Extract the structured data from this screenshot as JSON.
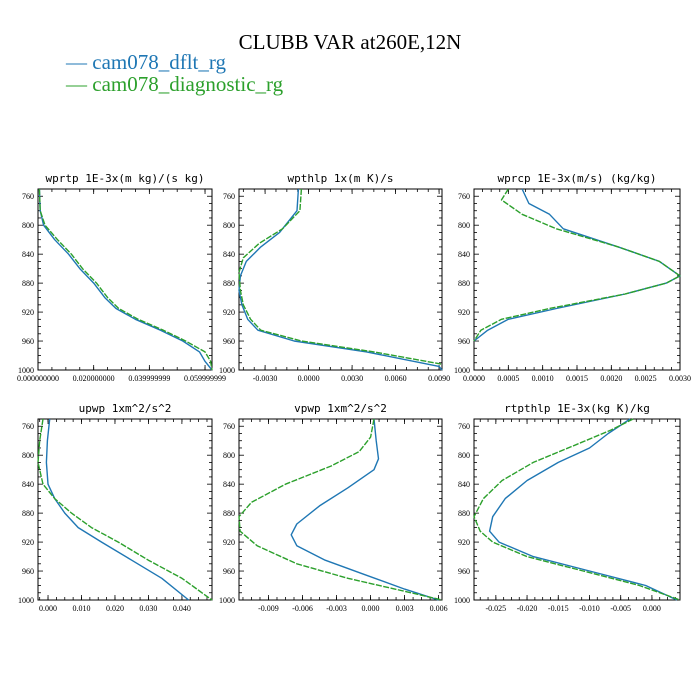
{
  "figure": {
    "title": "CLUBB VAR at260E,12N"
  },
  "legend": [
    {
      "label": "cam078_dflt_rg",
      "color": "#1f77b4"
    },
    {
      "label": "cam078_diagnostic_rg",
      "color": "#2ca02c"
    }
  ],
  "chart_data": [
    {
      "type": "line",
      "title": "wprtp  1E-3x(m kg)/(s kg)",
      "xlim": [
        0,
        0.0625
      ],
      "ylim": [
        750,
        1000
      ],
      "x_ticks": [
        0,
        0.02,
        0.04,
        0.06
      ],
      "x_tick_labels": [
        "0.000000000",
        "0.020000000",
        "0.039999999",
        "0.059999999"
      ],
      "y_ticks": [
        760,
        800,
        840,
        880,
        920,
        960,
        1000
      ],
      "series": [
        {
          "name": "cam078_dflt_rg",
          "color": "#1f77b4",
          "points": [
            [
              0.0005,
              750
            ],
            [
              0.0008,
              780
            ],
            [
              0.002,
              800
            ],
            [
              0.006,
              820
            ],
            [
              0.011,
              840
            ],
            [
              0.015,
              860
            ],
            [
              0.02,
              880
            ],
            [
              0.024,
              900
            ],
            [
              0.028,
              915
            ],
            [
              0.035,
              930
            ],
            [
              0.044,
              945
            ],
            [
              0.052,
              960
            ],
            [
              0.058,
              975
            ],
            [
              0.06,
              988
            ],
            [
              0.0625,
              1000
            ]
          ]
        },
        {
          "name": "cam078_diagnostic_rg",
          "color": "#2ca02c",
          "points": [
            [
              0.0005,
              750
            ],
            [
              0.0008,
              780
            ],
            [
              0.0025,
              800
            ],
            [
              0.007,
              820
            ],
            [
              0.012,
              840
            ],
            [
              0.016,
              860
            ],
            [
              0.021,
              880
            ],
            [
              0.025,
              900
            ],
            [
              0.029,
              915
            ],
            [
              0.036,
              930
            ],
            [
              0.045,
              945
            ],
            [
              0.053,
              960
            ],
            [
              0.06,
              975
            ],
            [
              0.062,
              988
            ],
            [
              0.0625,
              1000
            ]
          ]
        }
      ]
    },
    {
      "type": "line",
      "title": "wpthlp  1x(m K)/s",
      "xlim": [
        -0.0048,
        0.0092
      ],
      "ylim": [
        750,
        1000
      ],
      "x_ticks": [
        -0.003,
        0,
        0.003,
        0.006,
        0.009
      ],
      "x_tick_labels": [
        "-0.0030",
        "0.0000",
        "0.0030",
        "0.0060",
        "0.0090"
      ],
      "y_ticks": [
        760,
        800,
        840,
        880,
        920,
        960,
        1000
      ],
      "series": [
        {
          "name": "cam078_dflt_rg",
          "color": "#1f77b4",
          "points": [
            [
              -0.0007,
              750
            ],
            [
              -0.0008,
              780
            ],
            [
              -0.002,
              810
            ],
            [
              -0.0033,
              830
            ],
            [
              -0.0043,
              850
            ],
            [
              -0.0047,
              870
            ],
            [
              -0.0048,
              890
            ],
            [
              -0.0046,
              910
            ],
            [
              -0.0042,
              930
            ],
            [
              -0.0035,
              945
            ],
            [
              -0.001,
              960
            ],
            [
              0.004,
              975
            ],
            [
              0.009,
              995
            ],
            [
              0.0092,
              1000
            ]
          ]
        },
        {
          "name": "cam078_diagnostic_rg",
          "color": "#2ca02c",
          "points": [
            [
              -0.0005,
              750
            ],
            [
              -0.0006,
              780
            ],
            [
              -0.0018,
              805
            ],
            [
              -0.0034,
              825
            ],
            [
              -0.0045,
              845
            ],
            [
              -0.0048,
              865
            ],
            [
              -0.0047,
              890
            ],
            [
              -0.0045,
              910
            ],
            [
              -0.004,
              930
            ],
            [
              -0.0033,
              945
            ],
            [
              -0.0005,
              960
            ],
            [
              0.0045,
              975
            ],
            [
              0.0092,
              992
            ]
          ]
        }
      ]
    },
    {
      "type": "line",
      "title": "wprcp  1E-3x(m/s) (kg/kg)",
      "xlim": [
        0,
        0.003
      ],
      "ylim": [
        750,
        1000
      ],
      "x_ticks": [
        0,
        0.0005,
        0.001,
        0.0015,
        0.002,
        0.0025,
        0.003
      ],
      "x_tick_labels": [
        "0.0000",
        "0.0005",
        "0.0010",
        "0.0015",
        "0.0020",
        "0.0025",
        "0.0030"
      ],
      "y_ticks": [
        760,
        800,
        840,
        880,
        920,
        960,
        1000
      ],
      "series": [
        {
          "name": "cam078_dflt_rg",
          "color": "#1f77b4",
          "points": [
            [
              0.0007,
              750
            ],
            [
              0.0008,
              770
            ],
            [
              0.0011,
              785
            ],
            [
              0.0013,
              805
            ],
            [
              0.0021,
              830
            ],
            [
              0.0027,
              850
            ],
            [
              0.003,
              870
            ],
            [
              0.0028,
              880
            ],
            [
              0.0022,
              895
            ],
            [
              0.0012,
              915
            ],
            [
              0.0005,
              930
            ],
            [
              0.0002,
              945
            ],
            [
              0,
              960
            ]
          ]
        },
        {
          "name": "cam078_diagnostic_rg",
          "color": "#2ca02c",
          "points": [
            [
              0.0005,
              750
            ],
            [
              0.0004,
              765
            ],
            [
              0.0007,
              785
            ],
            [
              0.0012,
              805
            ],
            [
              0.0021,
              830
            ],
            [
              0.0027,
              850
            ],
            [
              0.003,
              870
            ],
            [
              0.0028,
              880
            ],
            [
              0.0022,
              895
            ],
            [
              0.0011,
              915
            ],
            [
              0.0004,
              930
            ],
            [
              0.0001,
              945
            ],
            [
              0,
              960
            ]
          ]
        }
      ]
    },
    {
      "type": "line",
      "title": "upwp  1xm^2/s^2",
      "xlim": [
        -0.003,
        0.049
      ],
      "ylim": [
        750,
        1000
      ],
      "x_ticks": [
        0,
        0.01,
        0.02,
        0.03,
        0.04
      ],
      "x_tick_labels": [
        "0.000",
        "0.010",
        "0.020",
        "0.030",
        "0.040"
      ],
      "y_ticks": [
        760,
        800,
        840,
        880,
        920,
        960,
        1000
      ],
      "series": [
        {
          "name": "cam078_dflt_rg",
          "color": "#1f77b4",
          "points": [
            [
              0.0005,
              750
            ],
            [
              -0.0002,
              780
            ],
            [
              -0.0005,
              810
            ],
            [
              0,
              840
            ],
            [
              0.002,
              860
            ],
            [
              0.005,
              880
            ],
            [
              0.009,
              900
            ],
            [
              0.016,
              920
            ],
            [
              0.025,
              945
            ],
            [
              0.034,
              970
            ],
            [
              0.042,
              1000
            ]
          ]
        },
        {
          "name": "cam078_diagnostic_rg",
          "color": "#2ca02c",
          "points": [
            [
              -0.0015,
              750
            ],
            [
              -0.0025,
              780
            ],
            [
              -0.003,
              810
            ],
            [
              -0.0015,
              840
            ],
            [
              0.002,
              860
            ],
            [
              0.007,
              880
            ],
            [
              0.013,
              900
            ],
            [
              0.021,
              920
            ],
            [
              0.03,
              945
            ],
            [
              0.04,
              970
            ],
            [
              0.049,
              1000
            ]
          ]
        }
      ]
    },
    {
      "type": "line",
      "title": "vpwp  1xm^2/s^2",
      "xlim": [
        -0.0116,
        0.0063
      ],
      "ylim": [
        750,
        1000
      ],
      "x_ticks": [
        -0.009,
        -0.006,
        -0.003,
        0,
        0.003,
        0.006
      ],
      "x_tick_labels": [
        "-0.009",
        "-0.006",
        "-0.003",
        "0.000",
        "0.003",
        "0.006"
      ],
      "y_ticks": [
        760,
        800,
        840,
        880,
        920,
        960,
        1000
      ],
      "series": [
        {
          "name": "cam078_dflt_rg",
          "color": "#1f77b4",
          "points": [
            [
              0.0003,
              750
            ],
            [
              0.0005,
              780
            ],
            [
              0.0007,
              805
            ],
            [
              0.0003,
              820
            ],
            [
              -0.002,
              845
            ],
            [
              -0.0045,
              870
            ],
            [
              -0.0065,
              895
            ],
            [
              -0.007,
              910
            ],
            [
              -0.0065,
              925
            ],
            [
              -0.004,
              945
            ],
            [
              -0.0005,
              965
            ],
            [
              0.003,
              985
            ],
            [
              0.006,
              1000
            ]
          ]
        },
        {
          "name": "cam078_diagnostic_rg",
          "color": "#2ca02c",
          "points": [
            [
              0.0003,
              750
            ],
            [
              0,
              775
            ],
            [
              -0.001,
              795
            ],
            [
              -0.0035,
              815
            ],
            [
              -0.0075,
              840
            ],
            [
              -0.0105,
              865
            ],
            [
              -0.0116,
              885
            ],
            [
              -0.0115,
              905
            ],
            [
              -0.01,
              925
            ],
            [
              -0.0065,
              950
            ],
            [
              -0.002,
              970
            ],
            [
              0.003,
              988
            ],
            [
              0.0063,
              1000
            ]
          ]
        }
      ]
    },
    {
      "type": "line",
      "title": "rtpthlp  1E-3x(kg K)/kg",
      "xlim": [
        -0.0285,
        0.0045
      ],
      "ylim": [
        750,
        1000
      ],
      "x_ticks": [
        -0.025,
        -0.02,
        -0.015,
        -0.01,
        -0.005,
        0
      ],
      "x_tick_labels": [
        "-0.025",
        "-0.020",
        "-0.015",
        "-0.010",
        "-0.005",
        "0.000"
      ],
      "y_ticks": [
        760,
        800,
        840,
        880,
        920,
        960,
        1000
      ],
      "series": [
        {
          "name": "cam078_dflt_rg",
          "color": "#1f77b4",
          "points": [
            [
              -0.0035,
              750
            ],
            [
              -0.007,
              770
            ],
            [
              -0.01,
              790
            ],
            [
              -0.015,
              810
            ],
            [
              -0.02,
              835
            ],
            [
              -0.0235,
              860
            ],
            [
              -0.0255,
              885
            ],
            [
              -0.026,
              905
            ],
            [
              -0.0245,
              920
            ],
            [
              -0.019,
              940
            ],
            [
              -0.01,
              960
            ],
            [
              -0.001,
              980
            ],
            [
              0.004,
              1000
            ]
          ]
        },
        {
          "name": "cam078_diagnostic_rg",
          "color": "#2ca02c",
          "points": [
            [
              -0.003,
              750
            ],
            [
              -0.0065,
              765
            ],
            [
              -0.012,
              785
            ],
            [
              -0.019,
              810
            ],
            [
              -0.024,
              835
            ],
            [
              -0.027,
              860
            ],
            [
              -0.0285,
              885
            ],
            [
              -0.0275,
              905
            ],
            [
              -0.0255,
              920
            ],
            [
              -0.02,
              940
            ],
            [
              -0.011,
              960
            ],
            [
              -0.002,
              980
            ],
            [
              0.0045,
              1000
            ]
          ]
        }
      ]
    }
  ]
}
